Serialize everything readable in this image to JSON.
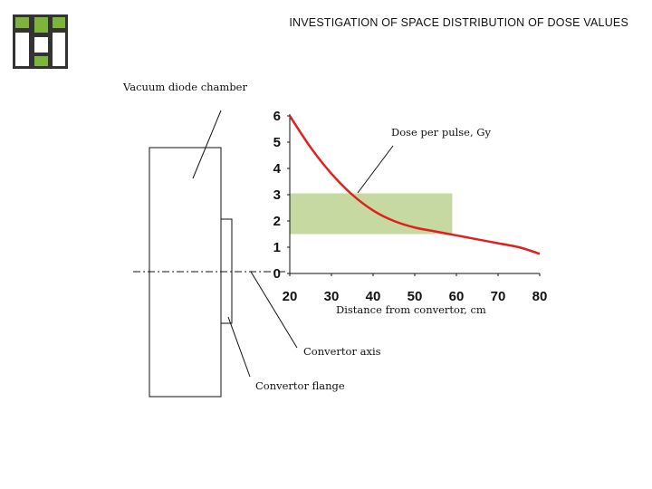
{
  "title": "INVESTIGATION OF SPACE DISTRIBUTION OF DOSE VALUES",
  "labels": {
    "vacuum_diode_chamber": "Vacuum diode chamber",
    "dose_per_pulse": "Dose per pulse, Gy",
    "distance_from_convertor": "Distance from convertor, cm",
    "convertor_axis": "Convertor axis",
    "convertor_flange": "Convertor flange"
  },
  "logo": {
    "color": "#7db43c",
    "dark": "#333333",
    "icon": "institution-logo"
  },
  "chart_data": {
    "type": "line",
    "x": [
      20,
      25,
      30,
      35,
      40,
      45,
      50,
      55,
      60,
      65,
      70,
      75,
      80
    ],
    "series": [
      {
        "values": [
          6.0,
          4.8,
          3.8,
          3.0,
          2.4,
          2.0,
          1.75,
          1.6,
          1.45,
          1.3,
          1.15,
          1.0,
          0.75
        ],
        "color": "#e02020"
      }
    ],
    "xlim": [
      20,
      80
    ],
    "ylim": [
      0,
      6
    ],
    "xticks": [
      "20",
      "30",
      "40",
      "50",
      "60",
      "70",
      "80"
    ],
    "yticks": [
      "0",
      "1",
      "2",
      "3",
      "4",
      "5",
      "6"
    ],
    "highlight": {
      "x": [
        20,
        59
      ],
      "y": [
        1.5,
        3.05
      ],
      "color": "#c5d9a0"
    },
    "grid": false
  }
}
